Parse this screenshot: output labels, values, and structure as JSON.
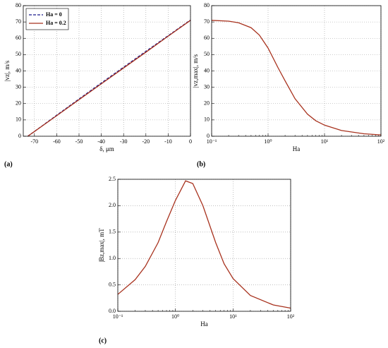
{
  "chart_data": [
    {
      "type": "line",
      "panel_label": "(a)",
      "xlabel": "δ, μm",
      "ylabel": "|vz|, m/s",
      "x": [
        -73,
        -70,
        -60,
        -50,
        -40,
        -30,
        -20,
        -10,
        0
      ],
      "series": [
        {
          "name": "Ha = 0",
          "color": "#1a1a8c",
          "dash": true,
          "values": [
            0,
            2.9,
            12.9,
            22.8,
            32.6,
            42.3,
            52.0,
            61.6,
            71.2
          ]
        },
        {
          "name": "Ha = 0.2",
          "color": "#a8321e",
          "dash": false,
          "values": [
            0,
            2.9,
            12.6,
            22.4,
            32.1,
            41.8,
            51.5,
            61.3,
            71.0
          ]
        }
      ],
      "xlim": [
        -75,
        0
      ],
      "xticks": [
        -70,
        -60,
        -50,
        -40,
        -30,
        -20,
        -10,
        0
      ],
      "ylim": [
        0,
        80
      ],
      "yticks": [
        0,
        10,
        20,
        30,
        40,
        50,
        60,
        70,
        80
      ],
      "grid": true,
      "legend": "upper-left"
    },
    {
      "type": "line",
      "panel_label": "(b)",
      "xlabel": "Ha",
      "ylabel": "|vz,max|, m/s",
      "xscale": "log",
      "color": "#a8321e",
      "x": [
        0.1,
        0.2,
        0.3,
        0.5,
        0.7,
        1,
        1.5,
        2,
        3,
        5,
        7,
        10,
        20,
        50,
        100
      ],
      "values": [
        71,
        70.5,
        69.5,
        66.5,
        62,
        54,
        42,
        34,
        23,
        13.5,
        9.5,
        6.8,
        3.5,
        1.5,
        0.8
      ],
      "xlim": [
        0.1,
        100
      ],
      "xticks": [
        {
          "value": 0.1,
          "label": "10⁻¹"
        },
        {
          "value": 1,
          "label": "10⁰"
        },
        {
          "value": 10,
          "label": "10¹"
        },
        {
          "value": 100,
          "label": "10²"
        }
      ],
      "ylim": [
        0,
        80
      ],
      "yticks": [
        0,
        10,
        20,
        30,
        40,
        50,
        60,
        70,
        80
      ],
      "grid": true
    },
    {
      "type": "line",
      "panel_label": "(c)",
      "xlabel": "Ha",
      "ylabel": "|Bz,max|, mT",
      "xscale": "log",
      "color": "#a8321e",
      "x": [
        0.1,
        0.2,
        0.3,
        0.5,
        0.7,
        1,
        1.5,
        2,
        3,
        5,
        7,
        10,
        20,
        50,
        100
      ],
      "values": [
        0.32,
        0.6,
        0.85,
        1.3,
        1.7,
        2.1,
        2.47,
        2.42,
        2.0,
        1.3,
        0.9,
        0.62,
        0.3,
        0.12,
        0.06
      ],
      "xlim": [
        0.1,
        100
      ],
      "xticks": [
        {
          "value": 0.1,
          "label": "10⁻¹"
        },
        {
          "value": 1,
          "label": "10⁰"
        },
        {
          "value": 10,
          "label": "10¹"
        },
        {
          "value": 100,
          "label": "10²"
        }
      ],
      "ylim": [
        0,
        2.5
      ],
      "yticks": [
        {
          "value": 0,
          "label": "0.0"
        },
        0.5,
        {
          "value": 1,
          "label": "1.0"
        },
        1.5,
        {
          "value": 2,
          "label": "2.0"
        },
        2.5
      ],
      "grid": true
    }
  ]
}
